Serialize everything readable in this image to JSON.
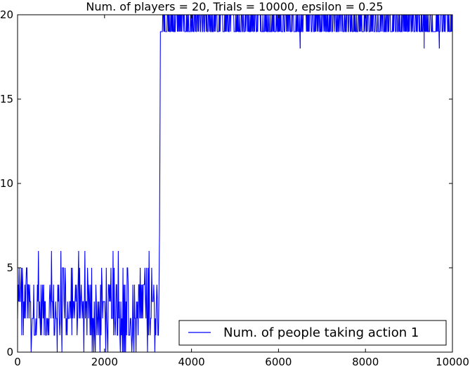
{
  "chart_data": {
    "type": "line",
    "title": "Num. of players = 20, Trials = 10000, epsilon = 0.25",
    "xlabel": "",
    "ylabel": "",
    "xlim": [
      0,
      10000
    ],
    "ylim": [
      0,
      20
    ],
    "x_ticks": [
      0,
      2000,
      4000,
      6000,
      8000,
      10000
    ],
    "y_ticks": [
      0,
      5,
      10,
      15,
      20
    ],
    "x_tick_labels": [
      "0",
      "2000",
      "4000",
      "6000",
      "8000",
      "10000"
    ],
    "y_tick_labels": [
      "0",
      "5",
      "10",
      "15",
      "20"
    ],
    "grid": false,
    "legend_position": "lower-right",
    "series": [
      {
        "name": "Num. of people taking action 1",
        "color": "#0000ff",
        "transition_x": 3260,
        "phase1": {
          "x_range": [
            0,
            3240
          ],
          "min": 0,
          "max": 6,
          "typical": [
            1,
            4
          ]
        },
        "phase2": {
          "x_range": [
            3290,
            10000
          ],
          "min": 18,
          "max": 20,
          "typical": [
            19,
            20
          ]
        },
        "dips": [
          {
            "x": 6500,
            "y": 18
          },
          {
            "x": 9350,
            "y": 18
          },
          {
            "x": 9700,
            "y": 18
          }
        ]
      }
    ]
  }
}
